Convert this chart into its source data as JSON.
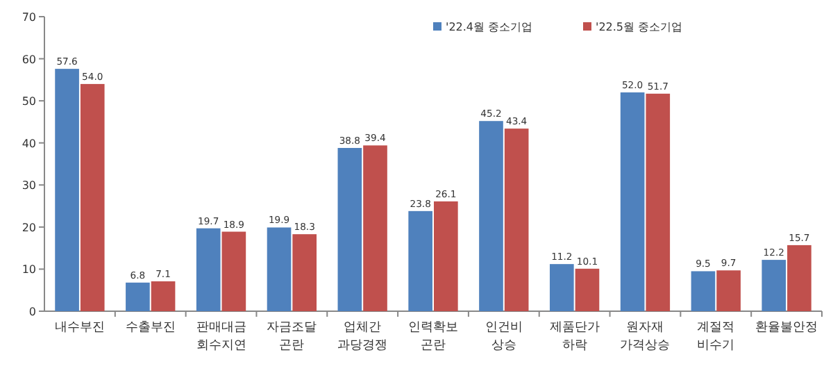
{
  "chart_data": {
    "type": "bar",
    "categories": [
      "내수부진",
      "수출부진",
      "판매대금 회수지연",
      "자금조달 곤란",
      "업체간 과당경쟁",
      "인력확보 곤란",
      "인건비 상승",
      "제품단가 하락",
      "원자재 가격상승",
      "계절적 비수기",
      "환율불안정"
    ],
    "series": [
      {
        "name": "'22.4월 중소기업",
        "color": "#4f81bd",
        "values": [
          57.6,
          6.8,
          19.7,
          19.9,
          38.8,
          23.8,
          45.2,
          11.2,
          52.0,
          9.5,
          12.2
        ],
        "value_labels": [
          "57.6",
          "6.8",
          "19.7",
          "19.9",
          "38.8",
          "23.8",
          "45.2",
          "11.2",
          "52.0",
          "9.5",
          "12.2"
        ]
      },
      {
        "name": "'22.5월 중소기업",
        "color": "#c0504d",
        "values": [
          54.0,
          7.1,
          18.9,
          18.3,
          39.4,
          26.1,
          43.4,
          10.1,
          51.7,
          9.7,
          15.7
        ],
        "value_labels": [
          "54.0",
          "7.1",
          "18.9",
          "18.3",
          "39.4",
          "26.1",
          "43.4",
          "10.1",
          "51.7",
          "9.7",
          "15.7"
        ]
      }
    ],
    "ylim": [
      0,
      70
    ],
    "yticks": [
      0,
      10,
      20,
      30,
      40,
      50,
      60,
      70
    ],
    "grid": false,
    "legend": "top right"
  }
}
